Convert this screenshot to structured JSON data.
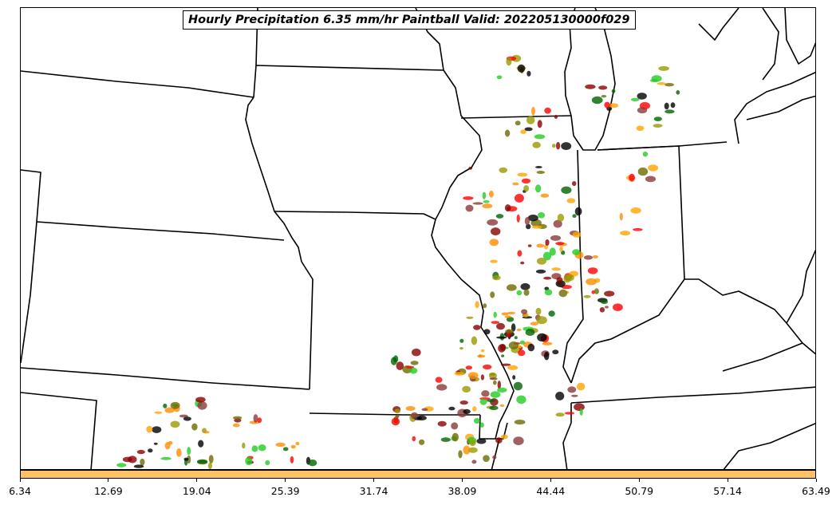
{
  "title": "Hourly Precipitation 6.35 mm/hr Paintball Valid: 202205130000f029",
  "colorbar": {
    "color": "#ffc266",
    "ticks": [
      "6.34",
      "12.69",
      "19.04",
      "25.39",
      "31.74",
      "38.09",
      "44.44",
      "50.79",
      "57.14",
      "63.49"
    ]
  },
  "palette": {
    "boundary": "#000000",
    "member_colors": [
      "#8b0000",
      "#ff0000",
      "#ff8c00",
      "#ffa500",
      "#6b6b00",
      "#9a9a00",
      "#006400",
      "#22cc22",
      "#8b3a3a",
      "#000000"
    ]
  }
}
